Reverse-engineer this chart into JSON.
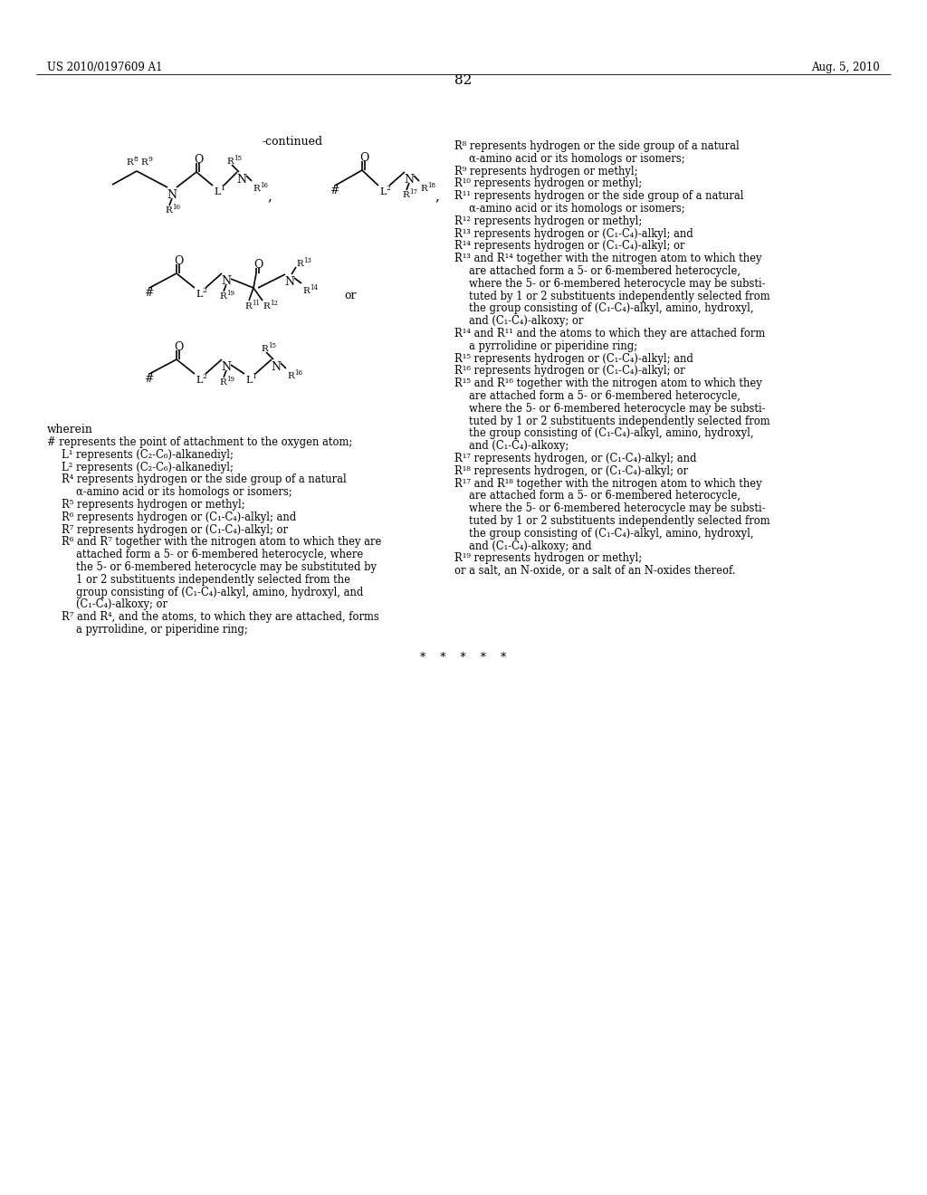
{
  "page_header_left": "US 2010/0197609 A1",
  "page_header_right": "Aug. 5, 2010",
  "page_number": "82",
  "background_color": "#ffffff",
  "text_color": "#000000",
  "continued_label": "-continued",
  "stars": "*    *    *    *    *"
}
